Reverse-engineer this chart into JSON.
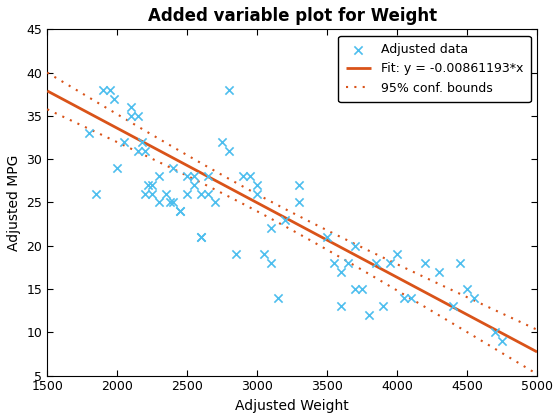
{
  "title": "Added variable plot for Weight",
  "xlabel": "Adjusted Weight",
  "ylabel": "Adjusted MPG",
  "xlim": [
    1500,
    5000
  ],
  "ylim": [
    5,
    45
  ],
  "xticks": [
    1500,
    2000,
    2500,
    3000,
    3500,
    4000,
    4500,
    5000
  ],
  "yticks": [
    5,
    10,
    15,
    20,
    25,
    30,
    35,
    40,
    45
  ],
  "slope": -0.00861193,
  "intercept": 50.8,
  "scatter_color": "#4DBEEE",
  "fit_color": "#D95319",
  "conf_color": "#D95319",
  "scatter_x": [
    1800,
    1850,
    1900,
    1950,
    1980,
    2000,
    2050,
    2100,
    2100,
    2150,
    2150,
    2180,
    2200,
    2200,
    2220,
    2250,
    2250,
    2300,
    2300,
    2350,
    2380,
    2400,
    2400,
    2450,
    2450,
    2500,
    2500,
    2550,
    2550,
    2600,
    2600,
    2600,
    2650,
    2650,
    2700,
    2750,
    2800,
    2800,
    2850,
    2900,
    2950,
    3000,
    3000,
    3050,
    3100,
    3100,
    3150,
    3200,
    3300,
    3300,
    3500,
    3550,
    3600,
    3600,
    3650,
    3700,
    3700,
    3750,
    3800,
    3850,
    3900,
    3950,
    4000,
    4050,
    4100,
    4200,
    4300,
    4400,
    4450,
    4500,
    4550,
    4700,
    4750
  ],
  "scatter_y": [
    33,
    26,
    38,
    38,
    37,
    29,
    32,
    36,
    35,
    35,
    31,
    32,
    31,
    26,
    27,
    27,
    26,
    28,
    25,
    26,
    25,
    29,
    25,
    24,
    24,
    28,
    26,
    28,
    27,
    26,
    21,
    21,
    28,
    26,
    25,
    32,
    31,
    38,
    19,
    28,
    28,
    27,
    26,
    19,
    18,
    22,
    14,
    23,
    25,
    27,
    21,
    18,
    17,
    13,
    18,
    20,
    15,
    15,
    12,
    18,
    13,
    18,
    19,
    14,
    14,
    18,
    17,
    13,
    18,
    15,
    14,
    10,
    9
  ],
  "legend_labels": [
    "Adjusted data",
    "Fit: y = -0.00861193*x",
    "95% conf. bounds"
  ],
  "x_mean": 3050,
  "residual_std": 4.2,
  "n": 73,
  "t_val": 1.996
}
